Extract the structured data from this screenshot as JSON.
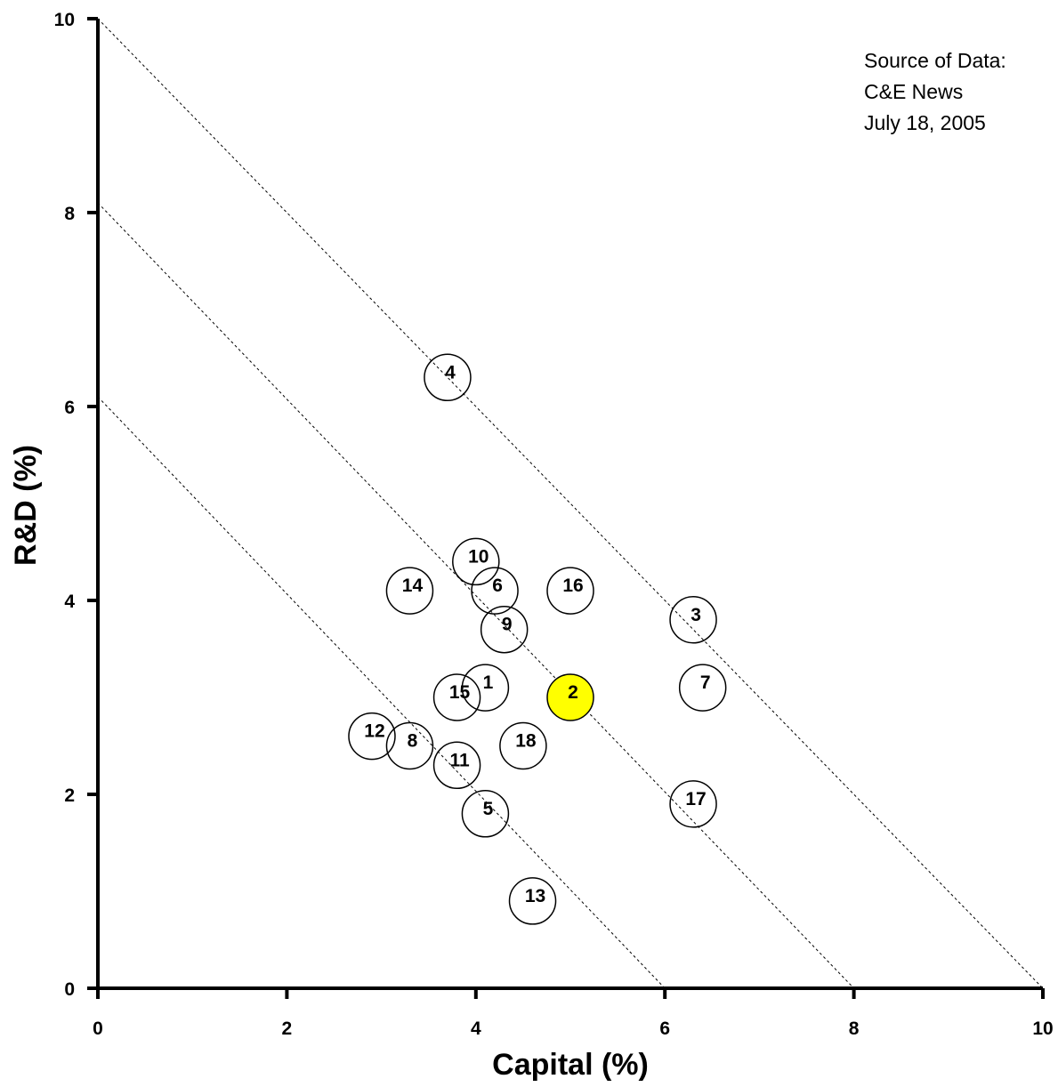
{
  "chart_data": {
    "type": "scatter",
    "xlabel": "Capital (%)",
    "ylabel": "R&D (%)",
    "xlim": [
      0,
      10
    ],
    "ylim": [
      0,
      10
    ],
    "x_ticks": [
      "0",
      "2",
      "4",
      "6",
      "8",
      "10"
    ],
    "y_ticks": [
      "0",
      "2",
      "4",
      "6",
      "8",
      "10"
    ],
    "grid": false,
    "annotation": [
      "Source of Data:",
      "C&E News",
      "July 18, 2005"
    ],
    "reference_lines": [
      {
        "x1": 0,
        "y1": 10,
        "x2": 10,
        "y2": 0
      },
      {
        "x1": 0,
        "y1": 8.1,
        "x2": 8.0,
        "y2": 0
      },
      {
        "x1": 0,
        "y1": 6.1,
        "x2": 6.0,
        "y2": 0
      }
    ],
    "highlight_color": "#ffff00",
    "points": [
      {
        "label": "1",
        "x": 4.1,
        "y": 3.1
      },
      {
        "label": "2",
        "x": 5.0,
        "y": 3.0,
        "highlight": true
      },
      {
        "label": "3",
        "x": 6.3,
        "y": 3.8
      },
      {
        "label": "4",
        "x": 3.7,
        "y": 6.3
      },
      {
        "label": "5",
        "x": 4.1,
        "y": 1.8
      },
      {
        "label": "6",
        "x": 4.2,
        "y": 4.1
      },
      {
        "label": "7",
        "x": 6.4,
        "y": 3.1
      },
      {
        "label": "8",
        "x": 3.3,
        "y": 2.5
      },
      {
        "label": "9",
        "x": 4.3,
        "y": 3.7
      },
      {
        "label": "10",
        "x": 4.0,
        "y": 4.4
      },
      {
        "label": "11",
        "x": 3.8,
        "y": 2.3
      },
      {
        "label": "12",
        "x": 2.9,
        "y": 2.6
      },
      {
        "label": "13",
        "x": 4.6,
        "y": 0.9
      },
      {
        "label": "14",
        "x": 3.3,
        "y": 4.1
      },
      {
        "label": "15",
        "x": 3.8,
        "y": 3.0
      },
      {
        "label": "16",
        "x": 5.0,
        "y": 4.1
      },
      {
        "label": "17",
        "x": 6.3,
        "y": 1.9
      },
      {
        "label": "18",
        "x": 4.5,
        "y": 2.5
      }
    ]
  }
}
